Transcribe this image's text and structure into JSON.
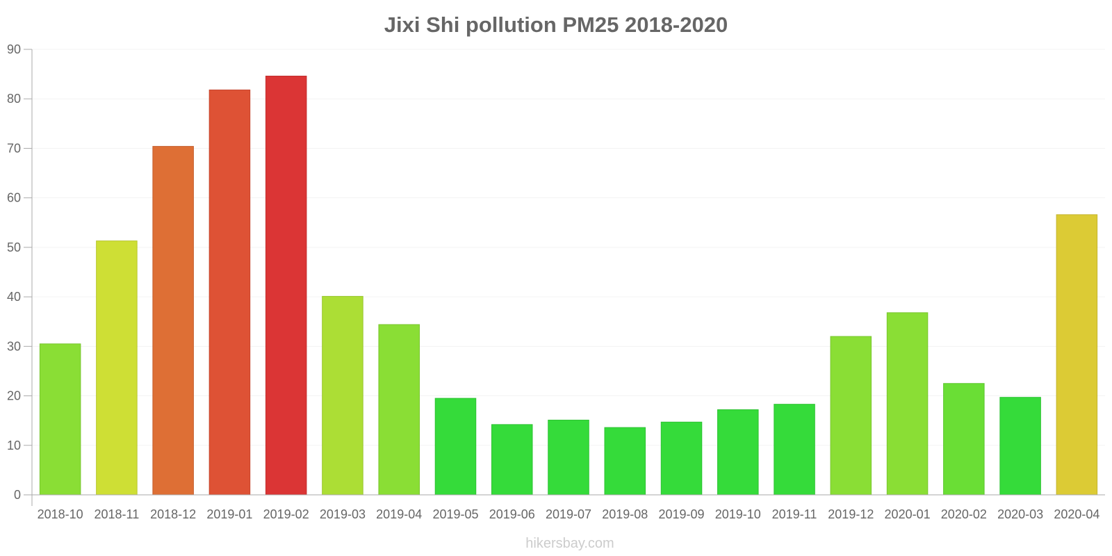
{
  "chart_data": {
    "type": "bar",
    "title": "Jixi Shi pollution PM25 2018-2020",
    "xlabel": "",
    "ylabel": "",
    "ylim": [
      0,
      90
    ],
    "yticks": [
      0,
      10,
      20,
      30,
      40,
      50,
      60,
      70,
      80,
      90
    ],
    "grid": true,
    "categories": [
      "2018-10",
      "2018-11",
      "2018-12",
      "2019-01",
      "2019-02",
      "2019-03",
      "2019-04",
      "2019-05",
      "2019-06",
      "2019-07",
      "2019-08",
      "2019-09",
      "2019-10",
      "2019-11",
      "2019-12",
      "2020-01",
      "2020-02",
      "2020-03",
      "2020-04"
    ],
    "values": [
      30.5,
      51.3,
      70.4,
      81.8,
      84.6,
      40.1,
      34.4,
      19.5,
      14.2,
      15.1,
      13.6,
      14.7,
      17.2,
      18.3,
      32.0,
      36.8,
      22.5,
      19.7,
      56.6
    ],
    "colors": [
      "#8ade35",
      "#cedf35",
      "#de6f35",
      "#de5235",
      "#db3535",
      "#acde35",
      "#8ade35",
      "#35db3a",
      "#35db3a",
      "#35db3a",
      "#35db3a",
      "#35db3a",
      "#35db3a",
      "#35db3a",
      "#8ade35",
      "#8ade35",
      "#6ade35",
      "#35db3a",
      "#dccb35"
    ],
    "borders": [
      "#78c52d",
      "#b7c52d",
      "#c55e2d",
      "#c5452d",
      "#c22d2d",
      "#98c52d",
      "#78c52d",
      "#2dc232",
      "#2dc232",
      "#2dc232",
      "#2dc232",
      "#2dc232",
      "#2dc232",
      "#2dc232",
      "#78c52d",
      "#78c52d",
      "#5cc52d",
      "#2dc232",
      "#c3b42d"
    ]
  },
  "watermark": "hikersbay.com"
}
